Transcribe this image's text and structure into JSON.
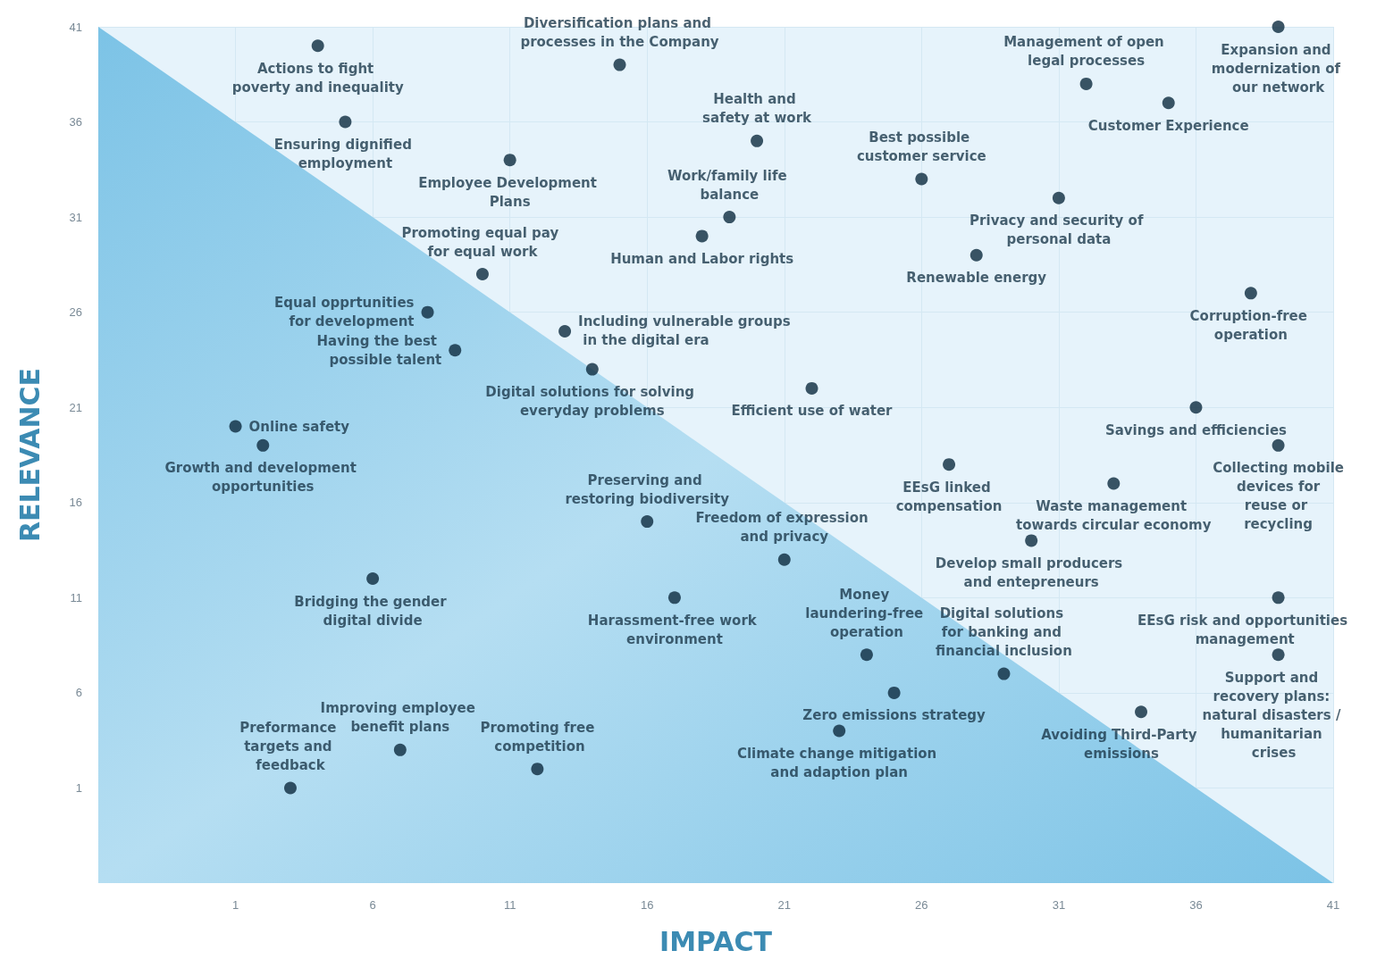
{
  "chart_data": {
    "type": "scatter",
    "xlabel": "IMPACT",
    "ylabel": "RELEVANCE",
    "xlim": [
      -4,
      41
    ],
    "ylim": [
      -4,
      41
    ],
    "xticks": [
      1,
      6,
      11,
      16,
      21,
      26,
      31,
      36,
      41
    ],
    "yticks": [
      1,
      6,
      11,
      16,
      21,
      26,
      31,
      36,
      41
    ],
    "grid": true,
    "series": [
      {
        "type": "area",
        "marker": "none",
        "color": "#7cc3e6",
        "x": [
          -4,
          41
        ],
        "values": [
          41,
          -4
        ]
      },
      {
        "marker": "circle",
        "color": "#0d2b3e",
        "x": [
          4,
          5,
          15,
          11,
          20,
          19,
          18,
          10,
          26,
          32,
          35,
          39,
          31,
          28,
          38,
          8,
          9,
          13,
          14,
          22,
          1,
          2,
          36,
          39,
          27,
          33,
          16,
          21,
          30,
          6,
          17,
          39,
          39,
          24,
          29,
          25,
          34,
          23,
          7,
          12,
          3
        ],
        "values": [
          40,
          36,
          39,
          34,
          35,
          31,
          30,
          28,
          33,
          38,
          37,
          41,
          32,
          29,
          27,
          26,
          24,
          25,
          23,
          22,
          20,
          19,
          21,
          19,
          18,
          17,
          15,
          13,
          14,
          12,
          11,
          11,
          8,
          8,
          7,
          6,
          5,
          4,
          3,
          2,
          1
        ]
      }
    ],
    "annotations": [
      {
        "text": "Actions to fight poverty and inequality",
        "x": 4,
        "y": 40
      },
      {
        "text": "Ensuring dignified employment",
        "x": 5,
        "y": 36
      },
      {
        "text": "Diversification plans and processes in the Company",
        "x": 15,
        "y": 39
      },
      {
        "text": "Employee Development Plans",
        "x": 11,
        "y": 34
      },
      {
        "text": "Health and safety at work",
        "x": 20,
        "y": 35
      },
      {
        "text": "Work/family life balance",
        "x": 19,
        "y": 31
      },
      {
        "text": "Human and Labor rights",
        "x": 18,
        "y": 30
      },
      {
        "text": "Promoting equal pay for equal work",
        "x": 10,
        "y": 28
      },
      {
        "text": "Best possible customer service",
        "x": 26,
        "y": 33
      },
      {
        "text": "Management of open legal processes",
        "x": 32,
        "y": 38
      },
      {
        "text": "Customer Experience",
        "x": 35,
        "y": 37
      },
      {
        "text": "Expansion and modernization of our network",
        "x": 39,
        "y": 41
      },
      {
        "text": "Privacy and security of personal data",
        "x": 31,
        "y": 32
      },
      {
        "text": "Renewable energy",
        "x": 28,
        "y": 29
      },
      {
        "text": "Corruption-free operation",
        "x": 38,
        "y": 27
      },
      {
        "text": "Equal opprtunities for development",
        "x": 8,
        "y": 26
      },
      {
        "text": "Having the best possible talent",
        "x": 9,
        "y": 24
      },
      {
        "text": "Including vulnerable groups in the digital era",
        "x": 13,
        "y": 25
      },
      {
        "text": "Digital solutions for solving everyday problems",
        "x": 14,
        "y": 23
      },
      {
        "text": "Efficient use of water",
        "x": 22,
        "y": 22
      },
      {
        "text": "Online safety",
        "x": 1,
        "y": 20
      },
      {
        "text": "Growth and development opportunities",
        "x": 2,
        "y": 19
      },
      {
        "text": "Savings and efficiencies",
        "x": 36,
        "y": 21
      },
      {
        "text": "Collecting mobile devices for reuse or recycling",
        "x": 39,
        "y": 19
      },
      {
        "text": "EEsG linked compensation",
        "x": 27,
        "y": 18
      },
      {
        "text": "Waste management towards circular economy",
        "x": 33,
        "y": 17
      },
      {
        "text": "Preserving and restoring biodiversity",
        "x": 16,
        "y": 15
      },
      {
        "text": "Freedom of expression and privacy",
        "x": 21,
        "y": 13
      },
      {
        "text": "Develop small producers and entepreneurs",
        "x": 30,
        "y": 14
      },
      {
        "text": "Bridging the gender digital divide",
        "x": 6,
        "y": 12
      },
      {
        "text": "Harassment-free work environment",
        "x": 17,
        "y": 11
      },
      {
        "text": "EEsG risk and opportunities management",
        "x": 39,
        "y": 11
      },
      {
        "text": "Support and recovery plans: natural disasters / humanitarian crises",
        "x": 39,
        "y": 8
      },
      {
        "text": "Money laundering-free operation",
        "x": 24,
        "y": 8
      },
      {
        "text": "Digital solutions for banking and financial inclusion",
        "x": 29,
        "y": 7
      },
      {
        "text": "Zero emissions strategy",
        "x": 25,
        "y": 6
      },
      {
        "text": "Avoiding Third-Party emissions",
        "x": 34,
        "y": 5
      },
      {
        "text": "Climate change mitigation and adaption plan",
        "x": 23,
        "y": 4
      },
      {
        "text": "Improving employee benefit plans",
        "x": 7,
        "y": 3
      },
      {
        "text": "Promoting free competition",
        "x": 12,
        "y": 2
      },
      {
        "text": "Preformance targets and feedback",
        "x": 3,
        "y": 1
      }
    ]
  }
}
